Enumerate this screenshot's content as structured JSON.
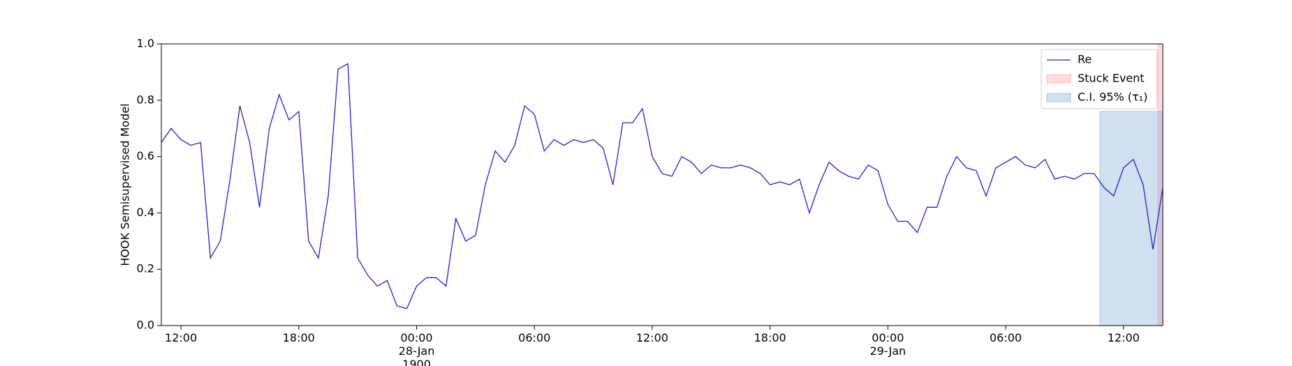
{
  "chart_data": {
    "type": "line",
    "ylabel": "HOOK Semisupervised Model",
    "x": [
      11.0,
      11.5,
      12.0,
      12.5,
      13.0,
      13.5,
      14.0,
      14.5,
      15.0,
      15.5,
      16.0,
      16.5,
      17.0,
      17.5,
      18.0,
      18.5,
      19.0,
      19.5,
      20.0,
      20.5,
      21.0,
      21.5,
      22.0,
      22.5,
      23.0,
      23.5,
      24.0,
      24.5,
      25.0,
      25.5,
      26.0,
      26.5,
      27.0,
      27.5,
      28.0,
      28.5,
      29.0,
      29.5,
      30.0,
      30.5,
      31.0,
      31.5,
      32.0,
      32.5,
      33.0,
      33.5,
      34.0,
      34.5,
      35.0,
      35.5,
      36.0,
      36.5,
      37.0,
      37.5,
      38.0,
      38.5,
      39.0,
      39.5,
      40.0,
      40.5,
      41.0,
      41.5,
      42.0,
      42.5,
      43.0,
      43.5,
      44.0,
      44.5,
      45.0,
      45.5,
      46.0,
      46.5,
      47.0,
      47.5,
      48.0,
      48.5,
      49.0,
      49.5,
      50.0,
      50.5,
      51.0,
      51.5,
      52.0,
      52.5,
      53.0,
      53.5,
      54.0,
      54.5,
      55.0,
      55.5,
      56.0,
      56.5,
      57.0,
      57.5,
      58.0,
      58.5,
      59.0,
      59.5,
      60.0,
      60.5,
      61.0,
      61.5,
      62.0
    ],
    "series": [
      {
        "name": "Re",
        "color": "#2020d0",
        "values": [
          0.65,
          0.7,
          0.66,
          0.64,
          0.65,
          0.24,
          0.3,
          0.52,
          0.78,
          0.65,
          0.42,
          0.7,
          0.82,
          0.73,
          0.76,
          0.3,
          0.24,
          0.46,
          0.91,
          0.93,
          0.24,
          0.18,
          0.14,
          0.16,
          0.07,
          0.06,
          0.14,
          0.17,
          0.17,
          0.14,
          0.38,
          0.3,
          0.32,
          0.5,
          0.62,
          0.58,
          0.64,
          0.78,
          0.75,
          0.62,
          0.66,
          0.64,
          0.66,
          0.65,
          0.66,
          0.63,
          0.5,
          0.72,
          0.72,
          0.77,
          0.6,
          0.54,
          0.53,
          0.6,
          0.58,
          0.54,
          0.57,
          0.56,
          0.56,
          0.57,
          0.56,
          0.54,
          0.5,
          0.51,
          0.5,
          0.52,
          0.4,
          0.5,
          0.58,
          0.55,
          0.53,
          0.52,
          0.57,
          0.55,
          0.43,
          0.37,
          0.37,
          0.33,
          0.42,
          0.42,
          0.53,
          0.6,
          0.56,
          0.55,
          0.46,
          0.56,
          0.58,
          0.6,
          0.57,
          0.56,
          0.59,
          0.52,
          0.53,
          0.52,
          0.54,
          0.54,
          0.49,
          0.46,
          0.56,
          0.59,
          0.5,
          0.27,
          0.49
        ]
      }
    ],
    "spans": [
      {
        "name": "Stuck Event",
        "color": "#ff9aa8",
        "xlim": [
          61.75,
          62.0
        ]
      },
      {
        "name": "C.I. 95% (τ₁)",
        "color": "#7aa8d4",
        "xlim": [
          58.8,
          62.0
        ],
        "ylim": [
          0,
          0.76
        ]
      }
    ],
    "xlim": [
      11.0,
      62.0
    ],
    "xticks": [
      {
        "value": 12,
        "label": "12:00"
      },
      {
        "value": 18,
        "label": "18:00"
      },
      {
        "value": 24,
        "label": "00:00\n28-Jan\n1900"
      },
      {
        "value": 30,
        "label": "06:00"
      },
      {
        "value": 36,
        "label": "12:00"
      },
      {
        "value": 42,
        "label": "18:00"
      },
      {
        "value": 48,
        "label": "00:00\n29-Jan"
      },
      {
        "value": 54,
        "label": "06:00"
      },
      {
        "value": 60,
        "label": "12:00"
      }
    ],
    "ylim": [
      0.0,
      1.0
    ],
    "yticks": [
      {
        "value": 0,
        "label": "0.0"
      },
      {
        "value": 0.2,
        "label": "0.2"
      },
      {
        "value": 0.4,
        "label": "0.4"
      },
      {
        "value": 0.6,
        "label": "0.6"
      },
      {
        "value": 0.8,
        "label": "0.8"
      },
      {
        "value": 1,
        "label": "1.0"
      }
    ],
    "legend": "upper right"
  }
}
